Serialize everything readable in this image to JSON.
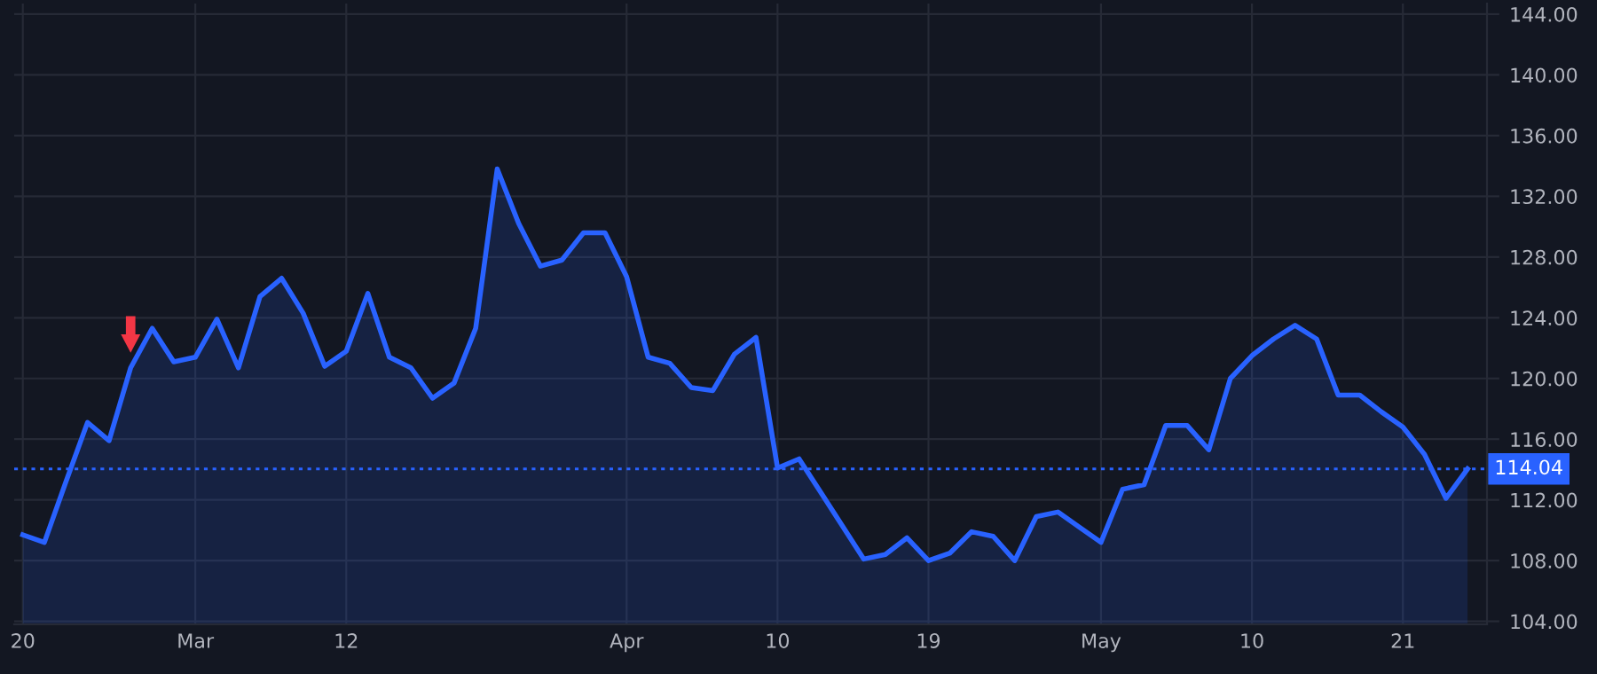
{
  "chart_data": {
    "type": "area",
    "categories": [
      "20",
      null,
      null,
      null,
      null,
      null,
      null,
      null,
      "Mar",
      null,
      null,
      null,
      null,
      null,
      null,
      "12",
      null,
      null,
      null,
      null,
      null,
      null,
      null,
      null,
      null,
      null,
      null,
      null,
      "Apr",
      null,
      null,
      null,
      null,
      null,
      null,
      "10",
      null,
      null,
      null,
      null,
      null,
      null,
      "19",
      null,
      null,
      null,
      null,
      null,
      null,
      null,
      "May",
      null,
      null,
      null,
      null,
      null,
      null,
      "10",
      null,
      null,
      null,
      null,
      null,
      null,
      "21",
      null,
      null,
      null
    ],
    "series": [
      {
        "color": "#2962ff",
        "values": [
          109.7,
          109.2,
          113.2,
          117.1,
          115.9,
          120.7,
          123.3,
          121.1,
          121.4,
          123.9,
          120.7,
          125.4,
          126.6,
          124.3,
          120.8,
          121.8,
          125.6,
          121.4,
          120.7,
          118.7,
          119.7,
          123.3,
          133.8,
          130.2,
          127.4,
          127.8,
          129.6,
          129.6,
          126.7,
          121.4,
          121.0,
          119.4,
          119.2,
          121.6,
          122.7,
          114.1,
          114.7,
          112.5,
          110.3,
          108.1,
          108.4,
          109.5,
          108.0,
          108.5,
          109.9,
          109.6,
          108.0,
          110.9,
          111.2,
          110.2,
          109.2,
          112.7,
          113.0,
          116.9,
          116.9,
          115.3,
          120.0,
          121.5,
          122.6,
          123.5,
          122.6,
          118.9,
          118.9,
          117.8,
          116.8,
          115.0,
          112.1,
          114.04
        ]
      }
    ],
    "ylim": [
      103.8,
      144.7
    ],
    "yticks": [
      {
        "value": 104,
        "label": "104.00"
      },
      {
        "value": 108,
        "label": "108.00"
      },
      {
        "value": 112,
        "label": "112.00"
      },
      {
        "value": 116,
        "label": "116.00"
      },
      {
        "value": 120,
        "label": "120.00"
      },
      {
        "value": 124,
        "label": "124.00"
      },
      {
        "value": 128,
        "label": "128.00"
      },
      {
        "value": 132,
        "label": "132.00"
      },
      {
        "value": 136,
        "label": "136.00"
      },
      {
        "value": 140,
        "label": "140.00"
      },
      {
        "value": 144,
        "label": "144.00"
      }
    ],
    "grid": true,
    "ref_lines": [
      {
        "axis": "y",
        "value": 114.04,
        "label": "114.04",
        "color": "#2962ff",
        "line_style": "dotted"
      }
    ]
  }
}
